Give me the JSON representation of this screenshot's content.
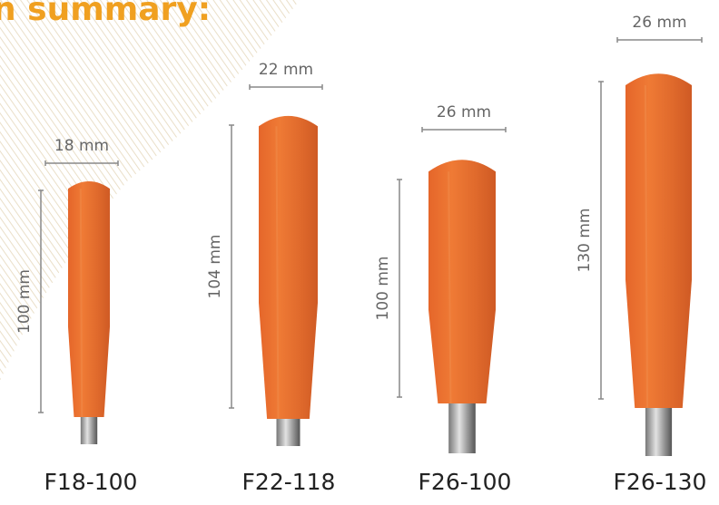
{
  "header": {
    "title": "n summary:"
  },
  "products": [
    {
      "name": "F18-100",
      "width_label": "18 mm",
      "height_label": "100 mm"
    },
    {
      "name": "F22-118",
      "width_label": "22 mm",
      "height_label": "104 mm"
    },
    {
      "name": "F26-100",
      "width_label": "26 mm",
      "height_label": "100 mm"
    },
    {
      "name": "F26-130",
      "width_label": "26 mm",
      "height_label": "130 mm"
    }
  ]
}
